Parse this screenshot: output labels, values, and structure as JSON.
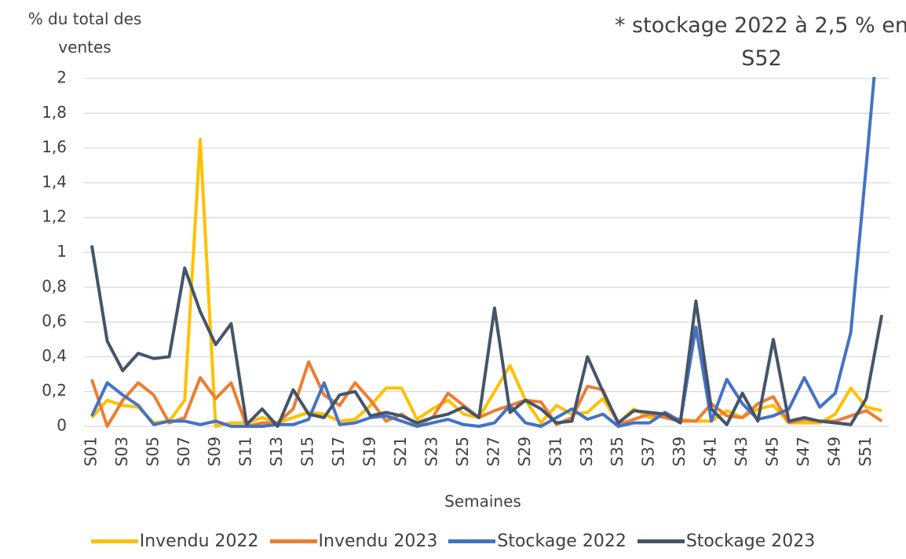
{
  "chart_data": {
    "type": "line",
    "y_label": "% du total des ventes",
    "x_label": "Semaines",
    "annotation": "* stockage 2022 à 2,5 % en S52",
    "categories": [
      "S01",
      null,
      "S03",
      null,
      "S05",
      null,
      "S07",
      null,
      "S09",
      null,
      "S11",
      null,
      "S13",
      null,
      "S15",
      null,
      "S17",
      null,
      "S19",
      null,
      "S21",
      null,
      "S23",
      null,
      "S25",
      null,
      "S27",
      null,
      "S29",
      null,
      "S31",
      null,
      "S33",
      null,
      "S35",
      null,
      "S37",
      null,
      "S39",
      null,
      "S41",
      null,
      "S43",
      null,
      "S45",
      null,
      "S47",
      null,
      "S49",
      null,
      "S51",
      null
    ],
    "series": [
      {
        "name": "Invendu 2022",
        "color": "#ffc000",
        "values": [
          0.05,
          0.15,
          0.12,
          0.11,
          0.02,
          0.03,
          0.15,
          1.65,
          0.0,
          0.02,
          0.02,
          0.05,
          0.02,
          0.05,
          0.08,
          0.07,
          0.03,
          0.04,
          0.12,
          0.22,
          0.22,
          0.04,
          0.1,
          0.15,
          0.07,
          0.05,
          0.2,
          0.35,
          0.15,
          0.02,
          0.12,
          0.07,
          0.08,
          0.16,
          0.02,
          0.1,
          0.05,
          0.06,
          0.04,
          0.03,
          0.03,
          0.09,
          0.05,
          0.1,
          0.12,
          0.02,
          0.02,
          0.02,
          0.07,
          0.22,
          0.11,
          0.09
        ]
      },
      {
        "name": "Invendu 2023",
        "color": "#ed7d31",
        "values": [
          0.27,
          0.0,
          0.15,
          0.25,
          0.18,
          0.02,
          0.05,
          0.28,
          0.16,
          0.25,
          0.0,
          0.02,
          0.02,
          0.1,
          0.37,
          0.18,
          0.12,
          0.25,
          0.15,
          0.03,
          0.07,
          0.01,
          0.05,
          0.19,
          0.12,
          0.05,
          0.09,
          0.12,
          0.15,
          0.14,
          0.01,
          0.05,
          0.23,
          0.21,
          0.01,
          0.04,
          0.07,
          0.05,
          0.03,
          0.03,
          0.13,
          0.06,
          0.05,
          0.13,
          0.17,
          0.02,
          0.04,
          0.03,
          0.03,
          0.06,
          0.09,
          0.03
        ]
      },
      {
        "name": "Stockage 2022",
        "color": "#4472c4",
        "values": [
          0.06,
          0.25,
          0.18,
          0.12,
          0.01,
          0.03,
          0.03,
          0.01,
          0.03,
          0.0,
          0.0,
          0.0,
          0.01,
          0.01,
          0.04,
          0.25,
          0.01,
          0.02,
          0.05,
          0.06,
          0.03,
          0.0,
          0.02,
          0.04,
          0.01,
          0.0,
          0.02,
          0.12,
          0.02,
          0.0,
          0.05,
          0.1,
          0.04,
          0.07,
          0.0,
          0.02,
          0.02,
          0.08,
          0.03,
          0.57,
          0.03,
          0.27,
          0.13,
          0.04,
          0.06,
          0.1,
          0.28,
          0.11,
          0.19,
          0.54,
          1.5,
          2.5
        ]
      },
      {
        "name": "Stockage 2023",
        "color": "#44546a",
        "values": [
          1.04,
          0.49,
          0.32,
          0.42,
          0.39,
          0.4,
          0.91,
          0.66,
          0.47,
          0.59,
          0.01,
          0.1,
          0.0,
          0.21,
          0.07,
          0.05,
          0.18,
          0.2,
          0.06,
          0.08,
          0.06,
          0.02,
          0.05,
          0.07,
          0.11,
          0.05,
          0.68,
          0.08,
          0.15,
          0.1,
          0.02,
          0.03,
          0.4,
          0.2,
          0.02,
          0.09,
          0.08,
          0.07,
          0.02,
          0.72,
          0.1,
          0.01,
          0.19,
          0.03,
          0.5,
          0.03,
          0.05,
          0.03,
          0.02,
          0.01,
          0.16,
          0.64
        ]
      }
    ],
    "ylim": [
      0,
      2
    ],
    "yticks": [
      0,
      {
        "value": 0.2,
        "label": "0,2"
      },
      {
        "value": 0.4,
        "label": "0,4"
      },
      {
        "value": 0.6,
        "label": "0,6"
      },
      {
        "value": 0.8,
        "label": "0,8"
      },
      1,
      {
        "value": 1.2,
        "label": "1,2"
      },
      {
        "value": 1.4,
        "label": "1,4"
      },
      {
        "value": 1.6,
        "label": "1,6"
      },
      {
        "value": 1.8,
        "label": "1,8"
      },
      2
    ],
    "grid": true,
    "legend": "bottom"
  }
}
